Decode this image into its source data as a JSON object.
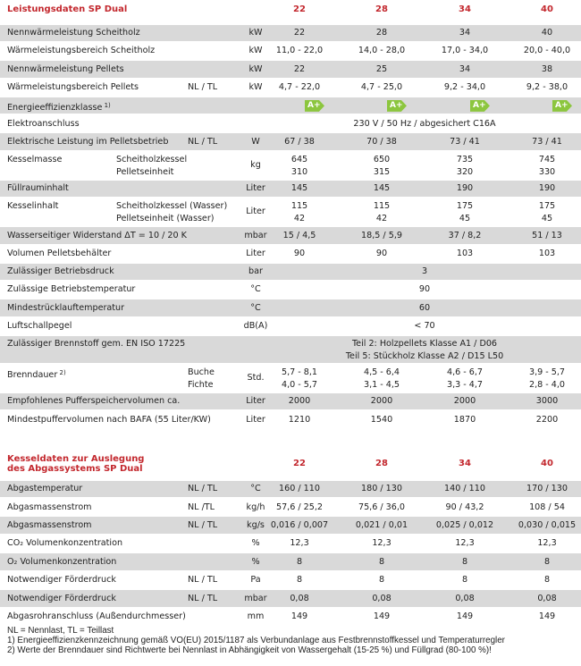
{
  "table1": {
    "title": "Leistungsdaten SP Dual",
    "columns": [
      "22",
      "28",
      "34",
      "40"
    ],
    "rows": [
      {
        "label": "Nennwärmeleistung Scheitholz",
        "unit": "kW",
        "values": [
          "22",
          "28",
          "34",
          "40"
        ]
      },
      {
        "label": "Wärmeleistungsbereich Scheitholz",
        "unit": "kW",
        "values": [
          "11,0 - 22,0",
          "14,0 - 28,0",
          "17,0 - 34,0",
          "20,0 - 40,0"
        ]
      },
      {
        "label": "Nennwärmeleistung Pellets",
        "unit": "kW",
        "values": [
          "22",
          "25",
          "34",
          "38"
        ]
      },
      {
        "label": "Wärmeleistungsbereich Pellets",
        "sub": "NL / TL",
        "unit": "kW",
        "values": [
          "4,7 - 22,0",
          "4,7 - 25,0",
          "9,2 - 34,0",
          "9,2 - 38,0"
        ]
      },
      {
        "label": "Energieeffizienzklasse",
        "sup": "1)",
        "classes": [
          "A+",
          "A+",
          "A+",
          "A+"
        ]
      },
      {
        "label": "Elektroanschluss",
        "span": "230 V / 50 Hz / abgesichert C16A"
      },
      {
        "label": "Elektrische Leistung im Pelletsbetrieb",
        "sub": "NL / TL",
        "unit": "W",
        "values": [
          "67 / 38",
          "70 / 38",
          "73 / 41",
          "73 / 41"
        ]
      },
      {
        "label": "Kesselmasse",
        "sub": [
          "Scheitholzkessel",
          "Pelletseinheit"
        ],
        "unit": "kg",
        "values": [
          [
            "645",
            "310"
          ],
          [
            "650",
            "315"
          ],
          [
            "735",
            "320"
          ],
          [
            "745",
            "330"
          ]
        ]
      },
      {
        "label": "Füllrauminhalt",
        "unit": "Liter",
        "values": [
          "145",
          "145",
          "190",
          "190"
        ]
      },
      {
        "label": "Kesselinhalt",
        "sub": [
          "Scheitholzkessel (Wasser)",
          "Pelletseinheit (Wasser)"
        ],
        "unit": "Liter",
        "values": [
          [
            "115",
            "42"
          ],
          [
            "115",
            "42"
          ],
          [
            "175",
            "45"
          ],
          [
            "175",
            "45"
          ]
        ]
      },
      {
        "label": "Wasserseitiger Widerstand ΔT = 10 / 20 K",
        "unit": "mbar",
        "values": [
          "15 / 4,5",
          "18,5 / 5,9",
          "37 / 8,2",
          "51 / 13"
        ]
      },
      {
        "label": "Volumen Pelletsbehälter",
        "unit": "Liter",
        "values": [
          "90",
          "90",
          "103",
          "103"
        ]
      },
      {
        "label": "Zulässiger Betriebsdruck",
        "unit": "bar",
        "span": "3"
      },
      {
        "label": "Zulässige Betriebstemperatur",
        "unit": "°C",
        "span": "90"
      },
      {
        "label": "Mindestrücklauftemperatur",
        "unit": "°C",
        "span": "60"
      },
      {
        "label": "Luftschallpegel",
        "unit": "dB(A)",
        "span": "< 70"
      },
      {
        "label": "Zulässiger Brennstoff gem. EN ISO 17225",
        "span": [
          "Teil 2: Holzpellets Klasse A1 / D06",
          "Teil 5: Stückholz Klasse A2 / D15 L50"
        ]
      },
      {
        "label": "Brenndauer",
        "sup": "2)",
        "sub": [
          "Buche",
          "Fichte"
        ],
        "unit": "Std.",
        "values": [
          [
            "5,7 - 8,1",
            "4,0 - 5,7"
          ],
          [
            "4,5 - 6,4",
            "3,1 - 4,5"
          ],
          [
            "4,6 - 6,7",
            "3,3 - 4,7"
          ],
          [
            "3,9 - 5,7",
            "2,8 - 4,0"
          ]
        ]
      },
      {
        "label": "Empfohlenes Pufferspeichervolumen ca.",
        "unit": "Liter",
        "values": [
          "2000",
          "2000",
          "2000",
          "3000"
        ]
      },
      {
        "label": "Mindestpuffervolumen nach BAFA (55 Liter/KW)",
        "unit": "Liter",
        "values": [
          "1210",
          "1540",
          "1870",
          "2200"
        ]
      }
    ]
  },
  "table2": {
    "title": [
      "Kesseldaten zur Auslegung",
      "des Abgassystems SP Dual"
    ],
    "columns": [
      "22",
      "28",
      "34",
      "40"
    ],
    "rows": [
      {
        "label": "Abgastemperatur",
        "sub": "NL / TL",
        "unit": "°C",
        "values": [
          "160 / 110",
          "180 / 130",
          "140 / 110",
          "170 / 130"
        ]
      },
      {
        "label": "Abgasmassenstrom",
        "sub": "NL /TL",
        "unit": "kg/h",
        "values": [
          "57,6 / 25,2",
          "75,6 / 36,0",
          "90 / 43,2",
          "108 / 54"
        ]
      },
      {
        "label": "Abgasmassenstrom",
        "sub": "NL / TL",
        "unit": "kg/s",
        "values": [
          "0,016 / 0,007",
          "0,021 / 0,01",
          "0,025 / 0,012",
          "0,030 / 0,015"
        ]
      },
      {
        "label": "CO₂ Volumenkonzentration",
        "unit": "%",
        "values": [
          "12,3",
          "12,3",
          "12,3",
          "12,3"
        ]
      },
      {
        "label": "O₂ Volumenkonzentration",
        "unit": "%",
        "values": [
          "8",
          "8",
          "8",
          "8"
        ]
      },
      {
        "label": "Notwendiger Förderdruck",
        "sub": "NL / TL",
        "unit": "Pa",
        "values": [
          "8",
          "8",
          "8",
          "8"
        ]
      },
      {
        "label": "Notwendiger Förderdruck",
        "sub": "NL / TL",
        "unit": "mbar",
        "values": [
          "0,08",
          "0,08",
          "0,08",
          "0,08"
        ]
      },
      {
        "label": "Abgasrohranschluss (Außendurchmesser)",
        "unit": "mm",
        "values": [
          "149",
          "149",
          "149",
          "149"
        ]
      }
    ]
  },
  "footnotes": [
    "NL = Nennlast, TL = Teillast",
    "1) Energieeffizienzkennzeichnung gemäß VO(EU) 2015/1187 als Verbundanlage aus Festbrennstoffkessel und Temperaturregler",
    "2) Werte der Brenndauer sind Richtwerte bei Nennlast in Abhängigkeit von Wassergehalt (15-25 %) und Füllgrad (80-100 %)!"
  ]
}
